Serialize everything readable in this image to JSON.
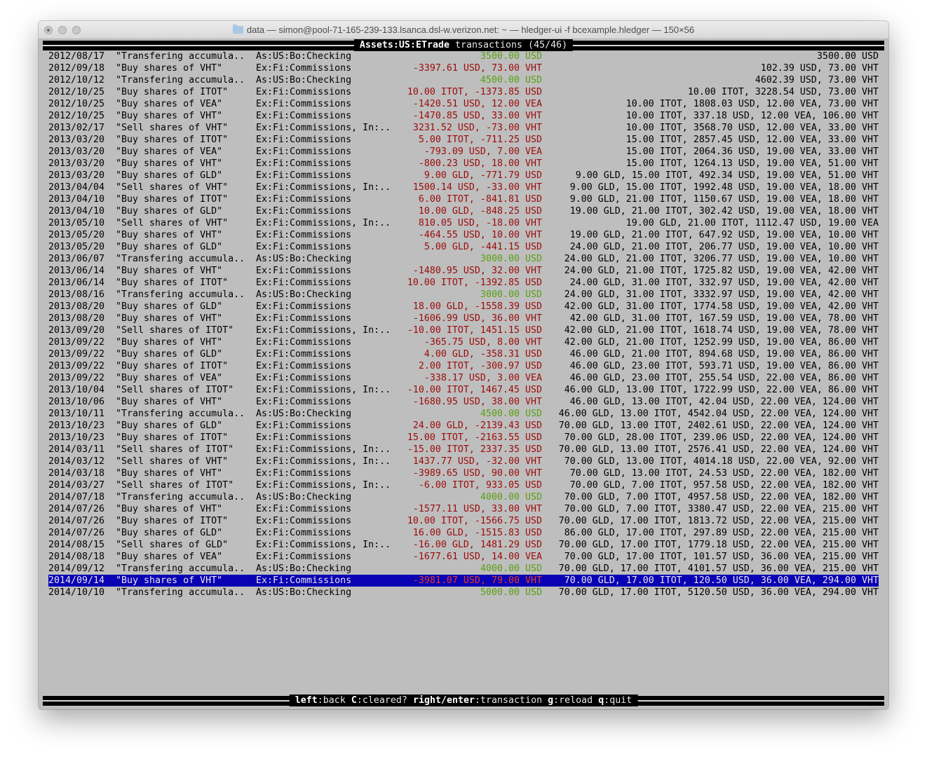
{
  "window": {
    "title": "data — simon@pool-71-165-239-133.lsanca.dsl-w.verizon.net: ~ — hledger-ui -f bcexample.hledger — 150×56",
    "icon": "folder-icon"
  },
  "header": {
    "account": "Assets:US:ETrade",
    "suffix": " transactions (45/46)"
  },
  "colors": {
    "terminal_bg": "#bebebe",
    "positive_amount": "#5aa012",
    "negative_amount": "#9c0a0a",
    "selected_bg": "#0a00b4",
    "selected_amount": "#e83a2a"
  },
  "selected_index": 44,
  "rows": [
    [
      "2012/08/17",
      "\"Transfering accumula..",
      "As:US:Bo:Checking",
      "3500.00 USD",
      "3500.00 USD"
    ],
    [
      "2012/09/18",
      "\"Buy shares of VHT\"",
      "Ex:Fi:Commissions",
      "-3397.61 USD, 73.00 VHT",
      "102.39 USD, 73.00 VHT"
    ],
    [
      "2012/10/12",
      "\"Transfering accumula..",
      "As:US:Bo:Checking",
      "4500.00 USD",
      "4602.39 USD, 73.00 VHT"
    ],
    [
      "2012/10/25",
      "\"Buy shares of ITOT\"",
      "Ex:Fi:Commissions",
      "10.00 ITOT, -1373.85 USD",
      "10.00 ITOT, 3228.54 USD, 73.00 VHT"
    ],
    [
      "2012/10/25",
      "\"Buy shares of VEA\"",
      "Ex:Fi:Commissions",
      "-1420.51 USD, 12.00 VEA",
      "10.00 ITOT, 1808.03 USD, 12.00 VEA, 73.00 VHT"
    ],
    [
      "2012/10/25",
      "\"Buy shares of VHT\"",
      "Ex:Fi:Commissions",
      "-1470.85 USD, 33.00 VHT",
      "10.00 ITOT, 337.18 USD, 12.00 VEA, 106.00 VHT"
    ],
    [
      "2013/02/17",
      "\"Sell shares of VHT\"",
      "Ex:Fi:Commissions, In:..",
      "3231.52 USD, -73.00 VHT",
      "10.00 ITOT, 3568.70 USD, 12.00 VEA, 33.00 VHT"
    ],
    [
      "2013/03/20",
      "\"Buy shares of ITOT\"",
      "Ex:Fi:Commissions",
      "5.00 ITOT, -711.25 USD",
      "15.00 ITOT, 2857.45 USD, 12.00 VEA, 33.00 VHT"
    ],
    [
      "2013/03/20",
      "\"Buy shares of VEA\"",
      "Ex:Fi:Commissions",
      "-793.09 USD, 7.00 VEA",
      "15.00 ITOT, 2064.36 USD, 19.00 VEA, 33.00 VHT"
    ],
    [
      "2013/03/20",
      "\"Buy shares of VHT\"",
      "Ex:Fi:Commissions",
      "-800.23 USD, 18.00 VHT",
      "15.00 ITOT, 1264.13 USD, 19.00 VEA, 51.00 VHT"
    ],
    [
      "2013/03/20",
      "\"Buy shares of GLD\"",
      "Ex:Fi:Commissions",
      "9.00 GLD, -771.79 USD",
      "9.00 GLD, 15.00 ITOT, 492.34 USD, 19.00 VEA, 51.00 VHT"
    ],
    [
      "2013/04/04",
      "\"Sell shares of VHT\"",
      "Ex:Fi:Commissions, In:..",
      "1500.14 USD, -33.00 VHT",
      "9.00 GLD, 15.00 ITOT, 1992.48 USD, 19.00 VEA, 18.00 VHT"
    ],
    [
      "2013/04/10",
      "\"Buy shares of ITOT\"",
      "Ex:Fi:Commissions",
      "6.00 ITOT, -841.81 USD",
      "9.00 GLD, 21.00 ITOT, 1150.67 USD, 19.00 VEA, 18.00 VHT"
    ],
    [
      "2013/04/10",
      "\"Buy shares of GLD\"",
      "Ex:Fi:Commissions",
      "10.00 GLD, -848.25 USD",
      "19.00 GLD, 21.00 ITOT, 302.42 USD, 19.00 VEA, 18.00 VHT"
    ],
    [
      "2013/05/10",
      "\"Sell shares of VHT\"",
      "Ex:Fi:Commissions, In:..",
      "810.05 USD, -18.00 VHT",
      "19.00 GLD, 21.00 ITOT, 1112.47 USD, 19.00 VEA"
    ],
    [
      "2013/05/20",
      "\"Buy shares of VHT\"",
      "Ex:Fi:Commissions",
      "-464.55 USD, 10.00 VHT",
      "19.00 GLD, 21.00 ITOT, 647.92 USD, 19.00 VEA, 10.00 VHT"
    ],
    [
      "2013/05/20",
      "\"Buy shares of GLD\"",
      "Ex:Fi:Commissions",
      "5.00 GLD, -441.15 USD",
      "24.00 GLD, 21.00 ITOT, 206.77 USD, 19.00 VEA, 10.00 VHT"
    ],
    [
      "2013/06/07",
      "\"Transfering accumula..",
      "As:US:Bo:Checking",
      "3000.00 USD",
      "24.00 GLD, 21.00 ITOT, 3206.77 USD, 19.00 VEA, 10.00 VHT"
    ],
    [
      "2013/06/14",
      "\"Buy shares of VHT\"",
      "Ex:Fi:Commissions",
      "-1480.95 USD, 32.00 VHT",
      "24.00 GLD, 21.00 ITOT, 1725.82 USD, 19.00 VEA, 42.00 VHT"
    ],
    [
      "2013/06/14",
      "\"Buy shares of ITOT\"",
      "Ex:Fi:Commissions",
      "10.00 ITOT, -1392.85 USD",
      "24.00 GLD, 31.00 ITOT, 332.97 USD, 19.00 VEA, 42.00 VHT"
    ],
    [
      "2013/08/16",
      "\"Transfering accumula..",
      "As:US:Bo:Checking",
      "3000.00 USD",
      "24.00 GLD, 31.00 ITOT, 3332.97 USD, 19.00 VEA, 42.00 VHT"
    ],
    [
      "2013/08/20",
      "\"Buy shares of GLD\"",
      "Ex:Fi:Commissions",
      "18.00 GLD, -1558.39 USD",
      "42.00 GLD, 31.00 ITOT, 1774.58 USD, 19.00 VEA, 42.00 VHT"
    ],
    [
      "2013/08/20",
      "\"Buy shares of VHT\"",
      "Ex:Fi:Commissions",
      "-1606.99 USD, 36.00 VHT",
      "42.00 GLD, 31.00 ITOT, 167.59 USD, 19.00 VEA, 78.00 VHT"
    ],
    [
      "2013/09/20",
      "\"Sell shares of ITOT\"",
      "Ex:Fi:Commissions, In:..",
      "-10.00 ITOT, 1451.15 USD",
      "42.00 GLD, 21.00 ITOT, 1618.74 USD, 19.00 VEA, 78.00 VHT"
    ],
    [
      "2013/09/22",
      "\"Buy shares of VHT\"",
      "Ex:Fi:Commissions",
      "-365.75 USD, 8.00 VHT",
      "42.00 GLD, 21.00 ITOT, 1252.99 USD, 19.00 VEA, 86.00 VHT"
    ],
    [
      "2013/09/22",
      "\"Buy shares of GLD\"",
      "Ex:Fi:Commissions",
      "4.00 GLD, -358.31 USD",
      "46.00 GLD, 21.00 ITOT, 894.68 USD, 19.00 VEA, 86.00 VHT"
    ],
    [
      "2013/09/22",
      "\"Buy shares of ITOT\"",
      "Ex:Fi:Commissions",
      "2.00 ITOT, -300.97 USD",
      "46.00 GLD, 23.00 ITOT, 593.71 USD, 19.00 VEA, 86.00 VHT"
    ],
    [
      "2013/09/22",
      "\"Buy shares of VEA\"",
      "Ex:Fi:Commissions",
      "-338.17 USD, 3.00 VEA",
      "46.00 GLD, 23.00 ITOT, 255.54 USD, 22.00 VEA, 86.00 VHT"
    ],
    [
      "2013/10/04",
      "\"Sell shares of ITOT\"",
      "Ex:Fi:Commissions, In:..",
      "-10.00 ITOT, 1467.45 USD",
      "46.00 GLD, 13.00 ITOT, 1722.99 USD, 22.00 VEA, 86.00 VHT"
    ],
    [
      "2013/10/06",
      "\"Buy shares of VHT\"",
      "Ex:Fi:Commissions",
      "-1680.95 USD, 38.00 VHT",
      "46.00 GLD, 13.00 ITOT, 42.04 USD, 22.00 VEA, 124.00 VHT"
    ],
    [
      "2013/10/11",
      "\"Transfering accumula..",
      "As:US:Bo:Checking",
      "4500.00 USD",
      "46.00 GLD, 13.00 ITOT, 4542.04 USD, 22.00 VEA, 124.00 VHT"
    ],
    [
      "2013/10/23",
      "\"Buy shares of GLD\"",
      "Ex:Fi:Commissions",
      "24.00 GLD, -2139.43 USD",
      "70.00 GLD, 13.00 ITOT, 2402.61 USD, 22.00 VEA, 124.00 VHT"
    ],
    [
      "2013/10/23",
      "\"Buy shares of ITOT\"",
      "Ex:Fi:Commissions",
      "15.00 ITOT, -2163.55 USD",
      "70.00 GLD, 28.00 ITOT, 239.06 USD, 22.00 VEA, 124.00 VHT"
    ],
    [
      "2014/03/11",
      "\"Sell shares of ITOT\"",
      "Ex:Fi:Commissions, In:..",
      "-15.00 ITOT, 2337.35 USD",
      "70.00 GLD, 13.00 ITOT, 2576.41 USD, 22.00 VEA, 124.00 VHT"
    ],
    [
      "2014/03/12",
      "\"Sell shares of VHT\"",
      "Ex:Fi:Commissions, In:..",
      "1437.77 USD, -32.00 VHT",
      "70.00 GLD, 13.00 ITOT, 4014.18 USD, 22.00 VEA, 92.00 VHT"
    ],
    [
      "2014/03/18",
      "\"Buy shares of VHT\"",
      "Ex:Fi:Commissions",
      "-3989.65 USD, 90.00 VHT",
      "70.00 GLD, 13.00 ITOT, 24.53 USD, 22.00 VEA, 182.00 VHT"
    ],
    [
      "2014/03/27",
      "\"Sell shares of ITOT\"",
      "Ex:Fi:Commissions, In:..",
      "-6.00 ITOT, 933.05 USD",
      "70.00 GLD, 7.00 ITOT, 957.58 USD, 22.00 VEA, 182.00 VHT"
    ],
    [
      "2014/07/18",
      "\"Transfering accumula..",
      "As:US:Bo:Checking",
      "4000.00 USD",
      "70.00 GLD, 7.00 ITOT, 4957.58 USD, 22.00 VEA, 182.00 VHT"
    ],
    [
      "2014/07/26",
      "\"Buy shares of VHT\"",
      "Ex:Fi:Commissions",
      "-1577.11 USD, 33.00 VHT",
      "70.00 GLD, 7.00 ITOT, 3380.47 USD, 22.00 VEA, 215.00 VHT"
    ],
    [
      "2014/07/26",
      "\"Buy shares of ITOT\"",
      "Ex:Fi:Commissions",
      "10.00 ITOT, -1566.75 USD",
      "70.00 GLD, 17.00 ITOT, 1813.72 USD, 22.00 VEA, 215.00 VHT"
    ],
    [
      "2014/07/26",
      "\"Buy shares of GLD\"",
      "Ex:Fi:Commissions",
      "16.00 GLD, -1515.83 USD",
      "86.00 GLD, 17.00 ITOT, 297.89 USD, 22.00 VEA, 215.00 VHT"
    ],
    [
      "2014/08/15",
      "\"Sell shares of GLD\"",
      "Ex:Fi:Commissions, In:..",
      "-16.00 GLD, 1481.29 USD",
      "70.00 GLD, 17.00 ITOT, 1779.18 USD, 22.00 VEA, 215.00 VHT"
    ],
    [
      "2014/08/18",
      "\"Buy shares of VEA\"",
      "Ex:Fi:Commissions",
      "-1677.61 USD, 14.00 VEA",
      "70.00 GLD, 17.00 ITOT, 101.57 USD, 36.00 VEA, 215.00 VHT"
    ],
    [
      "2014/09/12",
      "\"Transfering accumula..",
      "As:US:Bo:Checking",
      "4000.00 USD",
      "70.00 GLD, 17.00 ITOT, 4101.57 USD, 36.00 VEA, 215.00 VHT"
    ],
    [
      "2014/09/14",
      "\"Buy shares of VHT\"",
      "Ex:Fi:Commissions",
      "-3981.07 USD, 79.00 VHT",
      "70.00 GLD, 17.00 ITOT, 120.50 USD, 36.00 VEA, 294.00 VHT"
    ],
    [
      "2014/10/10",
      "\"Transfering accumula..",
      "As:US:Bo:Checking",
      "5000.00 USD",
      "70.00 GLD, 17.00 ITOT, 5120.50 USD, 36.00 VEA, 294.00 VHT"
    ]
  ],
  "footer": [
    {
      "key": "left",
      "action": "back"
    },
    {
      "key": "C",
      "action": "cleared?"
    },
    {
      "key": "right/enter",
      "action": "transaction"
    },
    {
      "key": "g",
      "action": "reload"
    },
    {
      "key": "q",
      "action": "quit"
    }
  ]
}
